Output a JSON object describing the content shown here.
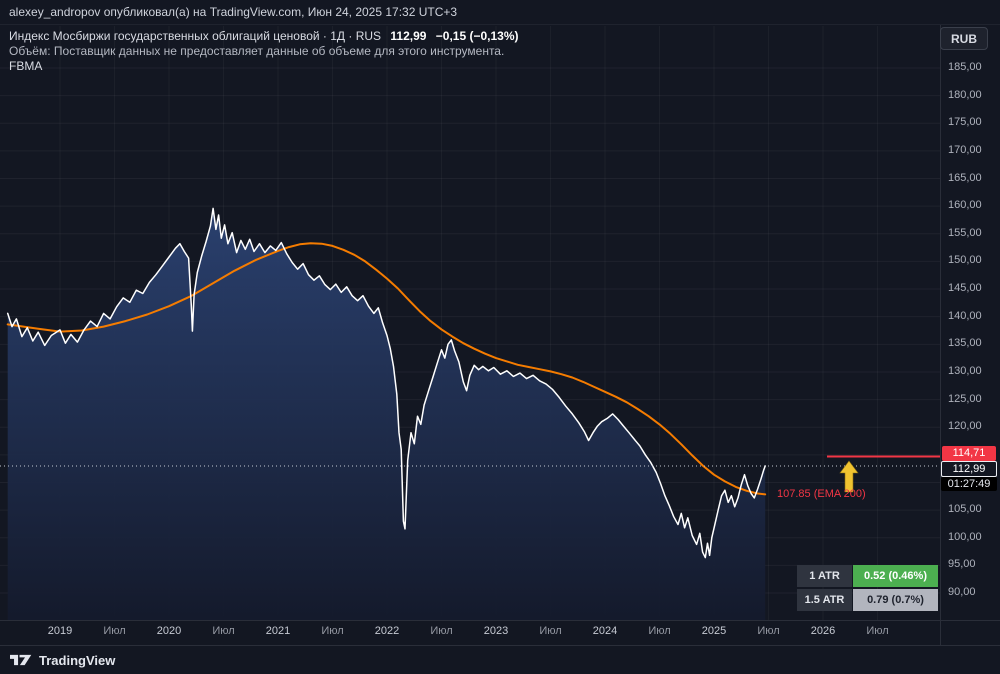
{
  "header": {
    "publisher_line": "alexey_andropov опубликовал(а) на TradingView.com, Июн 24, 2025 17:32 UTC+3"
  },
  "legend": {
    "title": "Индекс Мосбиржи государственных облигаций ценовой · 1Д · RUS",
    "price": "112,99",
    "change": "−0,15 (−0,13%)",
    "volume_note": "Объём: Поставщик данных не предоставляет данные об объеме для этого инструмента.",
    "indicator": "FBMA"
  },
  "currency_button": "RUB",
  "price_label": {
    "value": "112,99",
    "countdown": "01:27:49"
  },
  "level_line": {
    "value": "114,71",
    "price": 114.71,
    "color": "#f23645"
  },
  "ema_label": {
    "text": "107.85 (EMA 200)",
    "color": "#f23645"
  },
  "atr_table": {
    "rows": [
      {
        "label": "1 ATR",
        "value": "0.52 (0.46%)",
        "value_bg": "#4caf50",
        "value_color": "#ffffff"
      },
      {
        "label": "1.5 ATR",
        "value": "0.79 (0.7%)",
        "value_bg": "#b2b5be",
        "value_color": "#1e222d"
      }
    ]
  },
  "price_axis": {
    "labels": [
      {
        "text": "185,00",
        "price": 185
      },
      {
        "text": "180,00",
        "price": 180
      },
      {
        "text": "175,00",
        "price": 175
      },
      {
        "text": "170,00",
        "price": 170
      },
      {
        "text": "165,00",
        "price": 165
      },
      {
        "text": "160,00",
        "price": 160
      },
      {
        "text": "155,00",
        "price": 155
      },
      {
        "text": "150,00",
        "price": 150
      },
      {
        "text": "145,00",
        "price": 145
      },
      {
        "text": "140,00",
        "price": 140
      },
      {
        "text": "135,00",
        "price": 135
      },
      {
        "text": "130,00",
        "price": 130
      },
      {
        "text": "125,00",
        "price": 125
      },
      {
        "text": "120,00",
        "price": 120
      },
      {
        "text": "115,00",
        "price": 115
      },
      {
        "text": "110,00",
        "price": 110
      },
      {
        "text": "105,00",
        "price": 105
      },
      {
        "text": "100,00",
        "price": 100
      },
      {
        "text": "95,00",
        "price": 95
      },
      {
        "text": "90,00",
        "price": 90
      }
    ]
  },
  "time_axis": {
    "labels": [
      {
        "text": "2019",
        "t": 2019,
        "type": "year"
      },
      {
        "text": "Июл",
        "t": 2019.5,
        "type": "month"
      },
      {
        "text": "2020",
        "t": 2020,
        "type": "year"
      },
      {
        "text": "Июл",
        "t": 2020.5,
        "type": "month"
      },
      {
        "text": "2021",
        "t": 2021,
        "type": "year"
      },
      {
        "text": "Июл",
        "t": 2021.5,
        "type": "month"
      },
      {
        "text": "2022",
        "t": 2022,
        "type": "year"
      },
      {
        "text": "Июл",
        "t": 2022.5,
        "type": "month"
      },
      {
        "text": "2023",
        "t": 2023,
        "type": "year"
      },
      {
        "text": "Июл",
        "t": 2023.5,
        "type": "month"
      },
      {
        "text": "2024",
        "t": 2024,
        "type": "year"
      },
      {
        "text": "Июл",
        "t": 2024.5,
        "type": "month"
      },
      {
        "text": "2025",
        "t": 2025,
        "type": "year"
      },
      {
        "text": "Июл",
        "t": 2025.5,
        "type": "month"
      },
      {
        "text": "2026",
        "t": 2026,
        "type": "year"
      },
      {
        "text": "Июл",
        "t": 2026.5,
        "type": "month"
      }
    ]
  },
  "footer": {
    "brand": "TradingView"
  },
  "colors": {
    "background": "#131722",
    "price_line": "#ffffff",
    "ema_line": "#f57c00",
    "alert_line": "#f23645",
    "arrow": "#f0c330",
    "area_top": "#2b4272",
    "area_bottom": "#141a2c",
    "atr_green": "#4caf50",
    "atr_gray": "#b2b5be"
  },
  "chart_data": {
    "type": "area",
    "title": "Индекс Мосбиржи государственных облигаций ценовой",
    "interval": "1Д",
    "market": "RUS",
    "currency": "RUB",
    "last_price": 112.99,
    "change": -0.15,
    "change_pct": -0.13,
    "xlim": [
      2018.5,
      2026.6
    ],
    "ylim": [
      85,
      193
    ],
    "grid": true,
    "levels": [
      {
        "name": "alert-line",
        "price": 114.71,
        "color": "#f23645"
      },
      {
        "name": "current-price-dotted",
        "price": 112.99,
        "color": "#d8dce6"
      }
    ],
    "series": [
      {
        "name": "price",
        "color": "#ffffff",
        "points": [
          [
            2018.52,
            140.6
          ],
          [
            2018.56,
            138.2
          ],
          [
            2018.6,
            139.6
          ],
          [
            2018.65,
            136.4
          ],
          [
            2018.7,
            138.0
          ],
          [
            2018.75,
            135.6
          ],
          [
            2018.8,
            137.2
          ],
          [
            2018.86,
            134.8
          ],
          [
            2018.92,
            136.6
          ],
          [
            2019.0,
            137.6
          ],
          [
            2019.05,
            135.2
          ],
          [
            2019.1,
            136.8
          ],
          [
            2019.16,
            135.4
          ],
          [
            2019.22,
            137.6
          ],
          [
            2019.28,
            139.2
          ],
          [
            2019.34,
            138.2
          ],
          [
            2019.4,
            140.6
          ],
          [
            2019.46,
            139.6
          ],
          [
            2019.52,
            141.8
          ],
          [
            2019.58,
            143.4
          ],
          [
            2019.64,
            142.6
          ],
          [
            2019.7,
            144.8
          ],
          [
            2019.76,
            144.2
          ],
          [
            2019.82,
            146.2
          ],
          [
            2019.88,
            147.6
          ],
          [
            2019.94,
            149.2
          ],
          [
            2020.0,
            150.8
          ],
          [
            2020.06,
            152.4
          ],
          [
            2020.1,
            153.2
          ],
          [
            2020.14,
            151.8
          ],
          [
            2020.18,
            150.6
          ],
          [
            2020.205,
            142.0
          ],
          [
            2020.215,
            137.4
          ],
          [
            2020.23,
            144.0
          ],
          [
            2020.26,
            148.0
          ],
          [
            2020.3,
            151.0
          ],
          [
            2020.34,
            153.6
          ],
          [
            2020.38,
            156.4
          ],
          [
            2020.405,
            159.6
          ],
          [
            2020.43,
            155.8
          ],
          [
            2020.455,
            158.4
          ],
          [
            2020.48,
            154.2
          ],
          [
            2020.51,
            156.6
          ],
          [
            2020.54,
            153.2
          ],
          [
            2020.58,
            155.2
          ],
          [
            2020.62,
            151.6
          ],
          [
            2020.66,
            153.8
          ],
          [
            2020.7,
            152.2
          ],
          [
            2020.74,
            154.0
          ],
          [
            2020.78,
            151.8
          ],
          [
            2020.83,
            153.2
          ],
          [
            2020.88,
            151.6
          ],
          [
            2020.93,
            152.8
          ],
          [
            2020.98,
            152.0
          ],
          [
            2021.03,
            153.4
          ],
          [
            2021.08,
            151.4
          ],
          [
            2021.13,
            149.8
          ],
          [
            2021.18,
            148.6
          ],
          [
            2021.23,
            149.6
          ],
          [
            2021.28,
            147.6
          ],
          [
            2021.33,
            146.6
          ],
          [
            2021.38,
            147.4
          ],
          [
            2021.43,
            145.8
          ],
          [
            2021.48,
            144.9
          ],
          [
            2021.53,
            145.9
          ],
          [
            2021.58,
            144.4
          ],
          [
            2021.63,
            145.4
          ],
          [
            2021.68,
            143.8
          ],
          [
            2021.73,
            142.9
          ],
          [
            2021.78,
            143.8
          ],
          [
            2021.83,
            141.9
          ],
          [
            2021.88,
            140.6
          ],
          [
            2021.92,
            141.6
          ],
          [
            2021.96,
            138.9
          ],
          [
            2022.0,
            136.6
          ],
          [
            2022.03,
            134.2
          ],
          [
            2022.06,
            131.0
          ],
          [
            2022.09,
            126.0
          ],
          [
            2022.11,
            119.0
          ],
          [
            2022.13,
            116.0
          ],
          [
            2022.15,
            103.0
          ],
          [
            2022.165,
            101.6
          ],
          [
            2022.19,
            114.0
          ],
          [
            2022.22,
            119.0
          ],
          [
            2022.25,
            117.0
          ],
          [
            2022.28,
            122.0
          ],
          [
            2022.31,
            120.5
          ],
          [
            2022.34,
            124.0
          ],
          [
            2022.38,
            126.5
          ],
          [
            2022.42,
            129.0
          ],
          [
            2022.46,
            131.5
          ],
          [
            2022.5,
            134.0
          ],
          [
            2022.53,
            132.5
          ],
          [
            2022.56,
            135.0
          ],
          [
            2022.59,
            135.8
          ],
          [
            2022.62,
            133.8
          ],
          [
            2022.66,
            131.8
          ],
          [
            2022.7,
            128.2
          ],
          [
            2022.73,
            126.6
          ],
          [
            2022.76,
            129.4
          ],
          [
            2022.8,
            131.2
          ],
          [
            2022.84,
            130.4
          ],
          [
            2022.88,
            131.0
          ],
          [
            2022.93,
            130.2
          ],
          [
            2022.98,
            130.8
          ],
          [
            2023.04,
            129.6
          ],
          [
            2023.1,
            130.2
          ],
          [
            2023.16,
            129.2
          ],
          [
            2023.22,
            129.8
          ],
          [
            2023.28,
            128.8
          ],
          [
            2023.34,
            129.4
          ],
          [
            2023.4,
            128.4
          ],
          [
            2023.46,
            127.8
          ],
          [
            2023.52,
            126.8
          ],
          [
            2023.58,
            125.4
          ],
          [
            2023.64,
            123.8
          ],
          [
            2023.7,
            122.4
          ],
          [
            2023.76,
            120.8
          ],
          [
            2023.81,
            119.2
          ],
          [
            2023.85,
            117.6
          ],
          [
            2023.89,
            119.0
          ],
          [
            2023.93,
            120.2
          ],
          [
            2023.97,
            121.0
          ],
          [
            2024.02,
            121.6
          ],
          [
            2024.07,
            122.4
          ],
          [
            2024.12,
            121.4
          ],
          [
            2024.17,
            120.2
          ],
          [
            2024.22,
            119.0
          ],
          [
            2024.27,
            117.8
          ],
          [
            2024.32,
            116.6
          ],
          [
            2024.37,
            115.0
          ],
          [
            2024.42,
            113.6
          ],
          [
            2024.47,
            111.8
          ],
          [
            2024.51,
            109.8
          ],
          [
            2024.55,
            107.6
          ],
          [
            2024.59,
            105.8
          ],
          [
            2024.63,
            103.8
          ],
          [
            2024.67,
            102.4
          ],
          [
            2024.7,
            104.4
          ],
          [
            2024.73,
            101.8
          ],
          [
            2024.76,
            103.6
          ],
          [
            2024.8,
            100.4
          ],
          [
            2024.84,
            98.8
          ],
          [
            2024.87,
            100.8
          ],
          [
            2024.895,
            97.4
          ],
          [
            2024.92,
            96.4
          ],
          [
            2024.94,
            99.0
          ],
          [
            2024.96,
            96.8
          ],
          [
            2024.98,
            100.0
          ],
          [
            2025.01,
            102.6
          ],
          [
            2025.04,
            105.2
          ],
          [
            2025.07,
            107.6
          ],
          [
            2025.1,
            108.6
          ],
          [
            2025.13,
            106.4
          ],
          [
            2025.16,
            107.6
          ],
          [
            2025.19,
            105.6
          ],
          [
            2025.22,
            107.2
          ],
          [
            2025.25,
            109.6
          ],
          [
            2025.28,
            111.4
          ],
          [
            2025.31,
            109.4
          ],
          [
            2025.34,
            108.0
          ],
          [
            2025.37,
            107.2
          ],
          [
            2025.4,
            108.8
          ],
          [
            2025.43,
            110.6
          ],
          [
            2025.455,
            112.2
          ],
          [
            2025.47,
            112.99
          ]
        ]
      },
      {
        "name": "EMA 200",
        "color": "#f57c00",
        "last_value": 107.85,
        "points": [
          [
            2018.52,
            138.6
          ],
          [
            2018.8,
            137.8
          ],
          [
            2019.0,
            137.3
          ],
          [
            2019.2,
            137.5
          ],
          [
            2019.4,
            138.2
          ],
          [
            2019.6,
            139.2
          ],
          [
            2019.8,
            140.4
          ],
          [
            2020.0,
            141.9
          ],
          [
            2020.2,
            143.7
          ],
          [
            2020.4,
            146.0
          ],
          [
            2020.6,
            148.3
          ],
          [
            2020.8,
            150.3
          ],
          [
            2021.0,
            151.9
          ],
          [
            2021.1,
            152.6
          ],
          [
            2021.2,
            153.1
          ],
          [
            2021.3,
            153.3
          ],
          [
            2021.4,
            153.2
          ],
          [
            2021.5,
            152.8
          ],
          [
            2021.6,
            152.1
          ],
          [
            2021.7,
            151.2
          ],
          [
            2021.8,
            150.0
          ],
          [
            2021.9,
            148.5
          ],
          [
            2022.0,
            146.9
          ],
          [
            2022.1,
            145.1
          ],
          [
            2022.2,
            143.0
          ],
          [
            2022.3,
            141.0
          ],
          [
            2022.4,
            139.2
          ],
          [
            2022.5,
            137.7
          ],
          [
            2022.6,
            136.4
          ],
          [
            2022.7,
            135.2
          ],
          [
            2022.8,
            134.2
          ],
          [
            2022.9,
            133.3
          ],
          [
            2023.0,
            132.5
          ],
          [
            2023.1,
            131.9
          ],
          [
            2023.2,
            131.3
          ],
          [
            2023.3,
            130.9
          ],
          [
            2023.4,
            130.5
          ],
          [
            2023.5,
            130.1
          ],
          [
            2023.6,
            129.6
          ],
          [
            2023.7,
            129.0
          ],
          [
            2023.8,
            128.2
          ],
          [
            2023.9,
            127.3
          ],
          [
            2024.0,
            126.4
          ],
          [
            2024.1,
            125.5
          ],
          [
            2024.2,
            124.5
          ],
          [
            2024.3,
            123.3
          ],
          [
            2024.4,
            122.0
          ],
          [
            2024.5,
            120.5
          ],
          [
            2024.6,
            118.8
          ],
          [
            2024.7,
            116.9
          ],
          [
            2024.8,
            114.9
          ],
          [
            2024.9,
            113.0
          ],
          [
            2025.0,
            111.4
          ],
          [
            2025.1,
            110.2
          ],
          [
            2025.2,
            109.2
          ],
          [
            2025.3,
            108.5
          ],
          [
            2025.4,
            108.0
          ],
          [
            2025.47,
            107.85
          ]
        ]
      }
    ]
  }
}
